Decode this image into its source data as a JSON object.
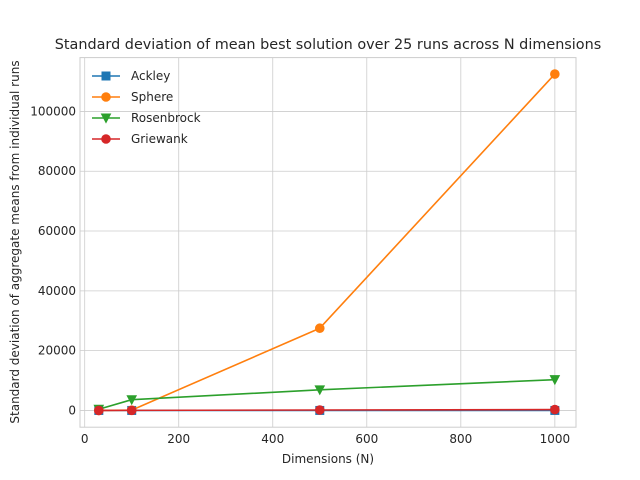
{
  "chart_data": {
    "type": "line",
    "title": "Standard deviation of mean best solution over 25 runs across N dimensions",
    "xlabel": "Dimensions (N)",
    "ylabel": "Standard deviation of aggregate means from individual runs",
    "x": [
      30,
      100,
      500,
      1000
    ],
    "xlim": [
      -10,
      1045
    ],
    "ylim": [
      -5600,
      118000
    ],
    "xticks": [
      0,
      200,
      400,
      600,
      800,
      1000
    ],
    "yticks": [
      0,
      20000,
      40000,
      60000,
      80000,
      100000
    ],
    "xtick_labels": [
      "0",
      "200",
      "400",
      "600",
      "800",
      "1000"
    ],
    "ytick_labels": [
      "0",
      "20000",
      "40000",
      "60000",
      "80000",
      "100000"
    ],
    "grid": true,
    "legend_position": "top-left",
    "series": [
      {
        "name": "Ackley",
        "color": "#1f77b4",
        "marker": "square",
        "values": [
          0.5,
          1,
          2,
          3
        ]
      },
      {
        "name": "Sphere",
        "color": "#ff7f0e",
        "marker": "circle",
        "values": [
          20,
          100,
          27500,
          112500
        ]
      },
      {
        "name": "Rosenbrock",
        "color": "#2ca02c",
        "marker": "triangle-down",
        "values": [
          400,
          3600,
          6900,
          10300
        ]
      },
      {
        "name": "Griewank",
        "color": "#d62728",
        "marker": "circle",
        "values": [
          5,
          30,
          150,
          300
        ]
      }
    ]
  }
}
